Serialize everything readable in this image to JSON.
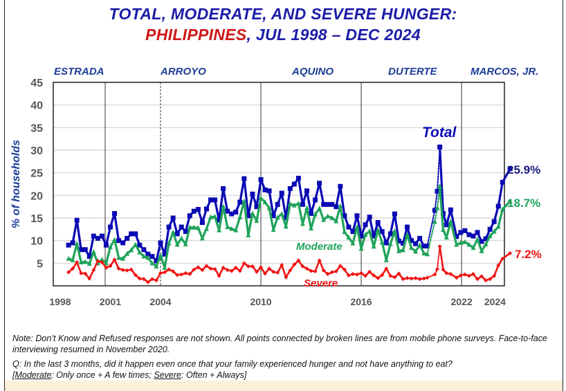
{
  "title": {
    "line1": "TOTAL, MODERATE, AND SEVERE HUNGER:",
    "line2_red": "PHILIPPINES",
    "line2_rest": ", JUL 1998 – DEC 2024"
  },
  "colors": {
    "total": "#0a0ab4",
    "moderate": "#1fa35a",
    "severe": "#f01414",
    "title": "#1c1ca8",
    "title_red": "#d01818"
  },
  "notes": {
    "note": "Note: Don’t Know and Refused responses are not shown. All points connected by broken lines are from mobile phone surveys. Face-to-face interviewing resumed in November 2020.",
    "question": "Q: In the last 3 months, did it happen even once that your family experienced hunger and not have anything to eat?",
    "def_open": "[",
    "def_moderate": "Moderate",
    "def_moderate_text": ": Only once + A few times; ",
    "def_severe": "Severe",
    "def_severe_text": ": Often + Always]"
  },
  "chart_data": {
    "type": "line",
    "ylabel": "% of households",
    "ylim": [
      0,
      45
    ],
    "yticks": [
      5,
      10,
      15,
      20,
      25,
      30,
      35,
      40,
      45
    ],
    "xticks": [
      1998,
      2001,
      2004,
      2010,
      2016,
      2022,
      2024
    ],
    "grid": true,
    "administrations": [
      {
        "name": "ESTRADA",
        "start": 1998
      },
      {
        "name": "ARROYO",
        "start": 2001,
        "line": "solid"
      },
      {
        "name": "AQUINO",
        "start": 2010,
        "line": "solid"
      },
      {
        "name": "DUTERTE",
        "start": 2016,
        "line": "solid"
      },
      {
        "name": "MARCOS, JR.",
        "start": 2022,
        "line": "solid"
      }
    ],
    "extra_lines": [
      {
        "at": 2004,
        "line": "dashed"
      }
    ],
    "x": [
      1998.5,
      1998.75,
      1999,
      1999.25,
      1999.5,
      1999.75,
      2000,
      2000.25,
      2000.5,
      2000.75,
      2001,
      2001.25,
      2001.5,
      2001.75,
      2002,
      2002.25,
      2002.5,
      2002.75,
      2003,
      2003.25,
      2003.5,
      2003.75,
      2004,
      2004.25,
      2004.5,
      2004.75,
      2005,
      2005.25,
      2005.5,
      2005.75,
      2006,
      2006.25,
      2006.5,
      2006.75,
      2007,
      2007.25,
      2007.5,
      2007.75,
      2008,
      2008.25,
      2008.5,
      2008.75,
      2009,
      2009.25,
      2009.5,
      2009.75,
      2010,
      2010.25,
      2010.5,
      2010.75,
      2011,
      2011.25,
      2011.5,
      2011.75,
      2012,
      2012.25,
      2012.5,
      2012.75,
      2013,
      2013.25,
      2013.5,
      2013.75,
      2014,
      2014.25,
      2014.5,
      2014.75,
      2015,
      2015.25,
      2015.5,
      2015.75,
      2016,
      2016.25,
      2016.5,
      2016.75,
      2017,
      2017.25,
      2017.5,
      2017.75,
      2018,
      2018.25,
      2018.5,
      2018.75,
      2019,
      2019.25,
      2019.5,
      2019.75,
      2019.95,
      2020.4,
      2020.55,
      2020.7,
      2020.9,
      2021.1,
      2021.35,
      2021.7,
      2021.95,
      2022.2,
      2022.45,
      2022.7,
      2022.95,
      2023.2,
      2023.45,
      2023.7,
      2023.95,
      2024.2,
      2024.45,
      2024.9
    ],
    "phone_survey_x": [
      2020.4,
      2020.55,
      2020.7
    ],
    "series": [
      {
        "name": "Total",
        "end_label": "25.9%",
        "marker": "square",
        "values": [
          9,
          9.5,
          14.5,
          8,
          8,
          6.5,
          11,
          10.5,
          11,
          9,
          13,
          16,
          10,
          9.5,
          10.5,
          11.5,
          11.5,
          9,
          8,
          7,
          6.5,
          5.5,
          9.5,
          7,
          13,
          15,
          11.5,
          13,
          12,
          15.5,
          16.5,
          16.9,
          14,
          17,
          19,
          19,
          14.5,
          21.5,
          16.5,
          15.9,
          16.3,
          18.5,
          23.7,
          15.5,
          20.3,
          17.5,
          23.5,
          21.2,
          21,
          15.5,
          18,
          20.5,
          15,
          21.5,
          22.5,
          23.8,
          18,
          21,
          16,
          19,
          22.7,
          18,
          18,
          18,
          17.5,
          22,
          15.5,
          13,
          12,
          15.5,
          11,
          13.5,
          15.2,
          11,
          14,
          12,
          9.5,
          11.5,
          15.9,
          9.9,
          9.4,
          13,
          10,
          9.3,
          10.5,
          8.8,
          8.8,
          16.7,
          20.9,
          30.7,
          16,
          13.5,
          16.8,
          10.9,
          11.8,
          12.2,
          11.3,
          11,
          11.8,
          9.8,
          10.4,
          12.5,
          14.2,
          17.6,
          22.9,
          25.9
        ]
      },
      {
        "name": "Moderate",
        "end_label": "18.7%",
        "marker": "triangle",
        "values": [
          6,
          5.7,
          9.3,
          5.2,
          5.3,
          4.9,
          7.5,
          5,
          5.8,
          5,
          8.6,
          10.2,
          6.2,
          6,
          7.1,
          7.9,
          9.1,
          7.4,
          6.5,
          6.2,
          5,
          4.3,
          6.7,
          4,
          9.4,
          11.8,
          9.1,
          10.5,
          9.2,
          12.9,
          12.9,
          12.8,
          10.5,
          12.6,
          15.2,
          15.3,
          12.3,
          17.5,
          13,
          12.6,
          12.3,
          15.2,
          18.7,
          11.2,
          16,
          14.4,
          19.4,
          18.5,
          17.2,
          12.4,
          15.1,
          15.9,
          13.1,
          18.1,
          17.8,
          18.2,
          13.7,
          17.2,
          12.7,
          15.8,
          17.1,
          14.6,
          15.4,
          15,
          14.3,
          17.6,
          11.9,
          10.7,
          9.4,
          13,
          8.2,
          11.3,
          12.1,
          8.7,
          12.3,
          9.6,
          5.7,
          9.3,
          12.1,
          7.7,
          7.9,
          11.3,
          8.4,
          7.6,
          9,
          7.2,
          7,
          14.2,
          17.2,
          22,
          12.4,
          10.7,
          14.2,
          9.1,
          9.5,
          9.7,
          9.1,
          8.4,
          10.3,
          7.7,
          9.2,
          11,
          12,
          13.1,
          16.9,
          18.7
        ]
      },
      {
        "name": "Severe",
        "end_label": "7.2%",
        "marker": "diamond",
        "values": [
          3,
          3.8,
          5.2,
          2.8,
          2.7,
          1.6,
          3.5,
          5.5,
          5.2,
          4,
          4.4,
          5.8,
          3.8,
          3.5,
          3.4,
          3.6,
          2.4,
          1.6,
          1.5,
          0.8,
          1.5,
          1.2,
          2.8,
          3,
          3.6,
          3.2,
          2.4,
          2.5,
          2.8,
          2.6,
          3.6,
          4.1,
          3.5,
          4.4,
          3.8,
          3.7,
          2.2,
          4,
          3.5,
          3.3,
          4,
          3.3,
          5,
          4.3,
          4.3,
          3.1,
          4.1,
          2.7,
          3.8,
          3.1,
          2.9,
          4.6,
          1.9,
          3.4,
          4.7,
          5.6,
          4.3,
          3.8,
          3.3,
          3.2,
          5.6,
          3.4,
          2.6,
          3,
          3.2,
          4.4,
          3.6,
          2.3,
          2.6,
          2.5,
          2.8,
          2.2,
          3.1,
          2.3,
          1.7,
          2.4,
          3.8,
          2.2,
          1.9,
          2.7,
          1.5,
          1.7,
          1.6,
          1.7,
          1.5,
          1.6,
          1.8,
          2.5,
          3.7,
          8.7,
          3.6,
          2.8,
          2.6,
          1.8,
          2.3,
          2.5,
          2.2,
          2.6,
          1.5,
          2.1,
          1.2,
          1.5,
          2.2,
          4.5,
          6,
          7.2
        ]
      }
    ]
  }
}
